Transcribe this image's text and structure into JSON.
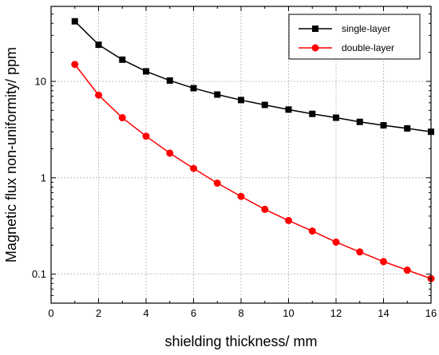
{
  "chart_data": {
    "type": "line",
    "title": "",
    "xlabel": "shielding thickness/ mm",
    "ylabel": "Magnetic flux non-uniformity/ ppm",
    "xlim": [
      0,
      16
    ],
    "ylim": [
      0.05,
      60
    ],
    "yscale": "log",
    "grid": true,
    "legend_position": "top-right",
    "x_ticks": [
      0,
      2,
      4,
      6,
      8,
      10,
      12,
      14,
      16
    ],
    "y_ticks": [
      0.1,
      1,
      10
    ],
    "y_tick_labels": [
      "0.1",
      "1",
      "10"
    ],
    "x": [
      1,
      2,
      3,
      4,
      5,
      6,
      7,
      8,
      9,
      10,
      11,
      12,
      13,
      14,
      15,
      16
    ],
    "series": [
      {
        "name": "single-layer",
        "color": "#000000",
        "marker": "square",
        "values": [
          42,
          24,
          16.8,
          12.7,
          10.2,
          8.5,
          7.3,
          6.4,
          5.7,
          5.1,
          4.6,
          4.2,
          3.8,
          3.5,
          3.25,
          3.0
        ]
      },
      {
        "name": "double-layer",
        "color": "#ff0000",
        "marker": "circle",
        "values": [
          15,
          7.2,
          4.2,
          2.7,
          1.8,
          1.25,
          0.88,
          0.64,
          0.47,
          0.36,
          0.28,
          0.215,
          0.17,
          0.135,
          0.11,
          0.09
        ]
      }
    ]
  }
}
